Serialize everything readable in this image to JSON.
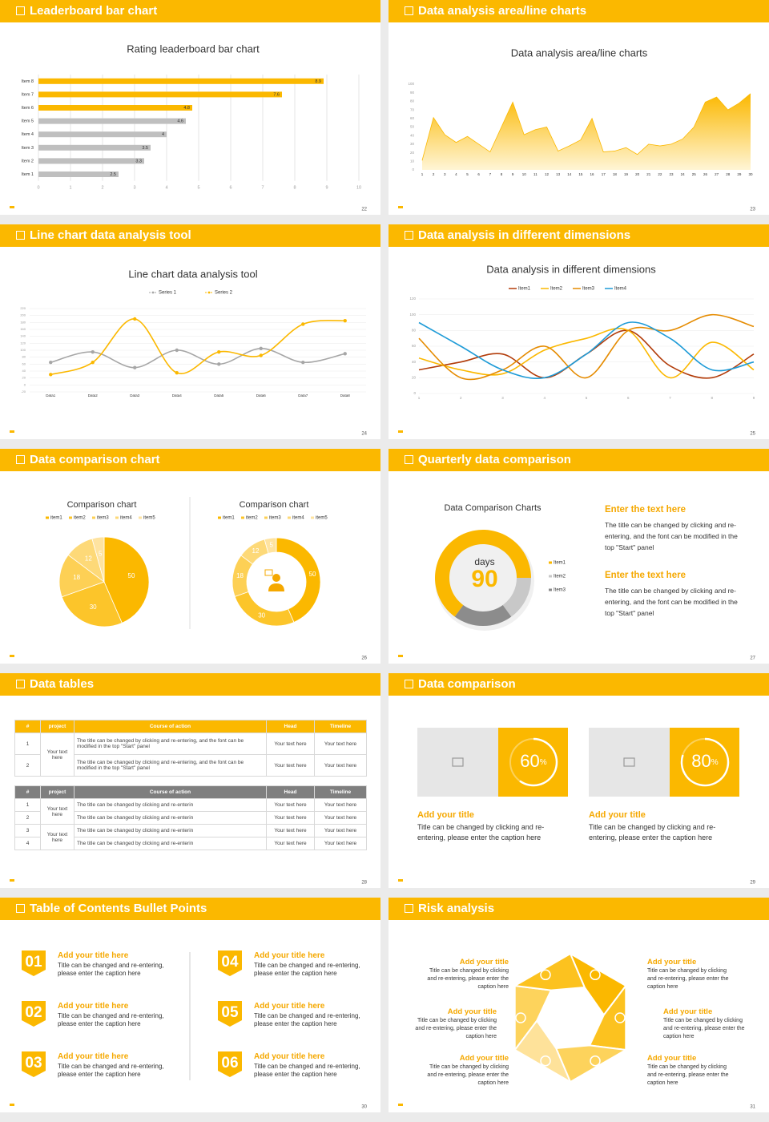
{
  "slides": [
    {
      "title": "Leaderboard bar chart",
      "page": 22,
      "charts": [
        {
          "type": "barh",
          "title": "Rating leaderboard bar chart",
          "categories": [
            "Item 8",
            "Item 7",
            "Item 6",
            "Item 5",
            "Item 4",
            "Item 3",
            "Item 2",
            "Item 1"
          ],
          "values": [
            8.9,
            7.6,
            4.8,
            4.6,
            4,
            3.5,
            3.3,
            2.5
          ],
          "colors": [
            "#fbb800",
            "#fbb800",
            "#fbb800",
            "#bfbfbf",
            "#bfbfbf",
            "#bfbfbf",
            "#bfbfbf",
            "#bfbfbf"
          ],
          "xlim": [
            0,
            10
          ],
          "xticks": [
            0,
            1,
            2,
            3,
            4,
            5,
            6,
            7,
            8,
            9,
            10
          ],
          "grid": true
        }
      ]
    },
    {
      "title": "Data analysis area/line charts",
      "page": 23,
      "charts": [
        {
          "type": "area",
          "title": "Data analysis area/line charts",
          "x": [
            1,
            2,
            3,
            4,
            5,
            6,
            7,
            8,
            9,
            10,
            11,
            12,
            13,
            14,
            15,
            16,
            17,
            18,
            19,
            20,
            21,
            22,
            23,
            24,
            25,
            26,
            27,
            28,
            29,
            30
          ],
          "values": [
            11,
            61,
            41,
            32,
            39,
            30,
            21,
            50,
            79,
            41,
            47,
            50,
            22,
            28,
            35,
            60,
            21,
            22,
            26,
            18,
            30,
            28,
            30,
            36,
            50,
            79,
            85,
            70,
            78,
            89
          ],
          "color": "#fbb800",
          "xlim": [
            1,
            30
          ],
          "ylim": [
            0,
            100
          ],
          "yticks": [
            0,
            10,
            20,
            30,
            40,
            50,
            60,
            70,
            80,
            90,
            100
          ]
        }
      ]
    },
    {
      "title": "Line chart data analysis tool",
      "page": 24,
      "charts": [
        {
          "type": "line",
          "title": "Line chart data analysis tool",
          "categories": [
            "Data1",
            "Data2",
            "Data3",
            "Data4",
            "Data5",
            "Data6",
            "Data7",
            "Data8"
          ],
          "series": [
            {
              "name": "Series 1",
              "color": "#a6a6a6",
              "values": [
                65,
                95,
                50,
                100,
                60,
                105,
                65,
                90
              ]
            },
            {
              "name": "Series 2",
              "color": "#fbb800",
              "values": [
                30,
                65,
                190,
                35,
                95,
                85,
                175,
                185
              ]
            }
          ],
          "ylim": [
            -20,
            220
          ],
          "yticks": [
            -20,
            0,
            20,
            40,
            60,
            80,
            100,
            120,
            140,
            160,
            180,
            200,
            220
          ],
          "grid": true,
          "smooth": true
        }
      ]
    },
    {
      "title": "Data analysis in different dimensions",
      "page": 25,
      "charts": [
        {
          "type": "multiline",
          "title": "Data analysis in different dimensions",
          "x": [
            1,
            2,
            3,
            4,
            5,
            6,
            7,
            8,
            9
          ],
          "series": [
            {
              "name": "Item1",
              "color": "#b23c0a",
              "values": [
                30,
                40,
                50,
                20,
                50,
                80,
                35,
                20,
                50
              ]
            },
            {
              "name": "Item2",
              "color": "#fbb800",
              "values": [
                45,
                30,
                25,
                55,
                70,
                80,
                20,
                65,
                30
              ]
            },
            {
              "name": "Item3",
              "color": "#e58b00",
              "values": [
                70,
                20,
                30,
                60,
                20,
                80,
                80,
                100,
                85
              ]
            },
            {
              "name": "Item4",
              "color": "#1e9bd7",
              "values": [
                90,
                60,
                30,
                20,
                50,
                90,
                70,
                30,
                40
              ]
            }
          ],
          "xlim": [
            1,
            9
          ],
          "ylim": [
            0,
            120
          ],
          "yticks": [
            0,
            20,
            40,
            60,
            80,
            100,
            120
          ],
          "grid": true,
          "smooth": true
        }
      ]
    },
    {
      "title": "Data comparison chart",
      "page": 26,
      "charts": [
        {
          "type": "pie",
          "title": "Comparison chart",
          "categories": [
            "item1",
            "item2",
            "item3",
            "item4",
            "item5"
          ],
          "values": [
            50,
            30,
            18,
            12,
            5
          ],
          "colors": [
            "#fbb800",
            "#fcc52a",
            "#fdd055",
            "#fdd978",
            "#fee3a0"
          ]
        },
        {
          "type": "donut",
          "title": "Comparison chart",
          "categories": [
            "item1",
            "item2",
            "item3",
            "item4",
            "item5"
          ],
          "values": [
            50,
            30,
            18,
            12,
            5
          ],
          "colors": [
            "#fbb800",
            "#fcc52a",
            "#fdd055",
            "#fdd978",
            "#fee3a0"
          ]
        }
      ]
    },
    {
      "title": "Quarterly data comparison",
      "page": 27,
      "charts": [
        {
          "type": "donut",
          "title": "Data Comparison Charts",
          "categories": [
            "Item1",
            "Item2",
            "Item3"
          ],
          "values": [
            65,
            15,
            20
          ],
          "colors": [
            "#fbb800",
            "#c8c8c8",
            "#8c8c8c"
          ],
          "center_label": "days",
          "center_value": 90
        }
      ],
      "texts": [
        {
          "heading": "Enter the text here",
          "body": "The title can be changed by clicking and re-entering, and the font can be modified in the top \"Start\" panel"
        },
        {
          "heading": "Enter the text here",
          "body": "The title can be changed by clicking and re-entering, and the font can be modified in the top \"Start\" panel"
        }
      ]
    },
    {
      "title": "Data tables",
      "page": 28,
      "tables": [
        {
          "header": [
            "#",
            "project",
            "Course of action",
            "Head",
            "Timeline"
          ],
          "groups": [
            {
              "project": "Your text here",
              "rows": [
                [
                  1,
                  "The title can be changed by clicking and re-entering, and the font can be modified in the top \"Start\" panel",
                  "Your text here",
                  "Your text here"
                ],
                [
                  2,
                  "The title can be changed by clicking and re-entering, and the font can be modified in the top \"Start\" panel",
                  "Your text here",
                  "Your text here"
                ]
              ]
            }
          ]
        },
        {
          "header": [
            "#",
            "project",
            "Course of action",
            "Head",
            "Timeline"
          ],
          "groups": [
            {
              "project": "Your text here",
              "rows": [
                [
                  1,
                  "The title can be changed by clicking and re-enterin",
                  "Your text here",
                  "Your text here"
                ],
                [
                  2,
                  "The title can be changed by clicking and re-enterin",
                  "Your text here",
                  "Your text here"
                ]
              ]
            },
            {
              "project": "Your text here",
              "rows": [
                [
                  3,
                  "The title can be changed by clicking and re-enterin",
                  "Your text here",
                  "Your text here"
                ],
                [
                  4,
                  "The title can be changed by clicking and re-enterin",
                  "Your text here",
                  "Your text here"
                ]
              ]
            }
          ]
        }
      ]
    },
    {
      "title": "Data comparison",
      "page": 29,
      "cards": [
        {
          "percent": 60,
          "unit": "%",
          "heading": "Add your title",
          "body": "Title can be changed by clicking and re-entering, please enter the caption here"
        },
        {
          "percent": 80,
          "unit": "%",
          "heading": "Add your title",
          "body": "Title can be changed by clicking and re-entering, please enter the caption here"
        }
      ]
    },
    {
      "title": "Table of Contents Bullet Points",
      "page": 30,
      "items": [
        {
          "number": "01",
          "heading": "Add your title here",
          "body": "Title can be changed and re-entering, please enter the caption here"
        },
        {
          "number": "02",
          "heading": "Add your title here",
          "body": "Title can be changed and re-entering, please enter the caption here"
        },
        {
          "number": "03",
          "heading": "Add your title here",
          "body": "Title can be changed and re-entering, please enter the caption here"
        },
        {
          "number": "04",
          "heading": "Add your title here",
          "body": "Title can be changed and re-entering, please enter the caption here"
        },
        {
          "number": "05",
          "heading": "Add your title here",
          "body": "Title can be changed and re-entering, please enter the caption here"
        },
        {
          "number": "06",
          "heading": "Add your title here",
          "body": "Title can be changed and re-entering, please enter the caption here"
        }
      ]
    },
    {
      "title": "Risk analysis",
      "page": 31,
      "risks": [
        {
          "heading": "Add your title",
          "body": "Title can be changed by clicking and re-entering, please enter the caption here"
        },
        {
          "heading": "Add your title",
          "body": "Title can be changed by clicking and re-entering, please enter the caption here"
        },
        {
          "heading": "Add your title",
          "body": "Title can be changed by clicking and re-entering, please enter the caption here"
        },
        {
          "heading": "Add your title",
          "body": "Title can be changed by clicking and re-entering, please enter the caption here"
        },
        {
          "heading": "Add your title",
          "body": "Title can be changed by clicking and re-entering, please enter the caption here"
        },
        {
          "heading": "Add your title",
          "body": "Title can be changed by clicking and re-entering, please enter the caption here"
        }
      ]
    }
  ]
}
